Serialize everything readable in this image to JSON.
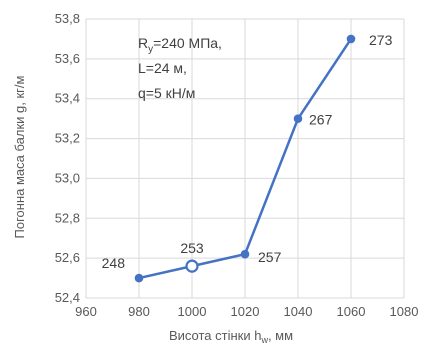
{
  "chart_data": {
    "type": "line",
    "title": "",
    "xlabel": "Висота стінки h",
    "xlabel_sub": "w",
    "xlabel_unit": ", мм",
    "ylabel": "Погонна маса балки g, кг/м",
    "xlim": [
      960,
      1080
    ],
    "ylim": [
      52.4,
      53.8
    ],
    "x_ticks": [
      "960",
      "980",
      "1000",
      "1020",
      "1040",
      "1060",
      "1080"
    ],
    "y_ticks": [
      "52,4",
      "52,6",
      "52,8",
      "53,0",
      "53,2",
      "53,4",
      "53,6",
      "53,8"
    ],
    "grid": true,
    "series": [
      {
        "x": [
          980,
          1000,
          1020,
          1040,
          1060
        ],
        "y": [
          52.5,
          52.56,
          52.62,
          53.3,
          53.7
        ],
        "labels": [
          "248",
          "253",
          "257",
          "267",
          "273"
        ],
        "highlight_index": 1,
        "color": "#4472c4"
      }
    ],
    "annotation": {
      "line1_main": "R",
      "line1_sub": "y",
      "line1_rest": "=240 МПа,",
      "line2": "L=24 м,",
      "line3": "q=5 кН/м"
    }
  }
}
